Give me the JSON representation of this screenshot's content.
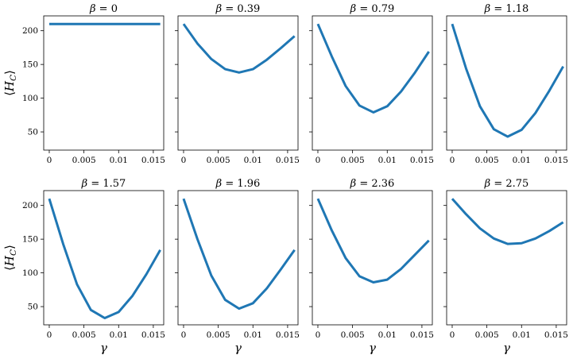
{
  "chart_data": {
    "type": "line",
    "rows": 2,
    "cols": 4,
    "xlabel": "γ",
    "ylabel_top": "⟨H",
    "ylabel_sub": "C",
    "ylabel_close": "⟩",
    "xlim": [
      -0.0008,
      0.0165
    ],
    "ylim": [
      23,
      222
    ],
    "xticks": [
      0,
      0.005,
      0.01,
      0.015
    ],
    "xtick_labels": [
      "0",
      "0.005",
      "0.01",
      "0.015"
    ],
    "yticks": [
      50,
      100,
      150,
      200
    ],
    "ytick_labels": [
      "50",
      "100",
      "150",
      "200"
    ],
    "title_symbol": "β",
    "title_eq": " = ",
    "panels": [
      {
        "beta": "0",
        "x": [
          0,
          0.016
        ],
        "y": [
          210,
          210
        ]
      },
      {
        "beta": "0.39",
        "x": [
          0,
          0.002,
          0.004,
          0.006,
          0.008,
          0.01,
          0.012,
          0.014,
          0.016
        ],
        "y": [
          210,
          181,
          158,
          143,
          138,
          143,
          157,
          174,
          192
        ]
      },
      {
        "beta": "0.79",
        "x": [
          0,
          0.002,
          0.004,
          0.006,
          0.008,
          0.01,
          0.012,
          0.014,
          0.016
        ],
        "y": [
          210,
          162,
          118,
          89,
          79,
          88,
          110,
          138,
          169
        ]
      },
      {
        "beta": "1.18",
        "x": [
          0,
          0.002,
          0.004,
          0.006,
          0.008,
          0.01,
          0.012,
          0.014,
          0.016
        ],
        "y": [
          210,
          144,
          88,
          54,
          43,
          53,
          78,
          111,
          147
        ]
      },
      {
        "beta": "1.57",
        "x": [
          0,
          0.002,
          0.004,
          0.006,
          0.008,
          0.01,
          0.012,
          0.014,
          0.016
        ],
        "y": [
          210,
          143,
          83,
          45,
          33,
          42,
          66,
          98,
          134
        ]
      },
      {
        "beta": "1.96",
        "x": [
          0,
          0.002,
          0.004,
          0.006,
          0.008,
          0.01,
          0.012,
          0.014,
          0.016
        ],
        "y": [
          210,
          150,
          96,
          60,
          47,
          55,
          77,
          105,
          134
        ]
      },
      {
        "beta": "2.36",
        "x": [
          0,
          0.002,
          0.004,
          0.006,
          0.008,
          0.01,
          0.012,
          0.014,
          0.016
        ],
        "y": [
          210,
          163,
          122,
          95,
          86,
          90,
          106,
          127,
          148
        ]
      },
      {
        "beta": "2.75",
        "x": [
          0,
          0.002,
          0.004,
          0.006,
          0.008,
          0.01,
          0.012,
          0.014,
          0.016
        ],
        "y": [
          210,
          187,
          166,
          151,
          143,
          144,
          151,
          162,
          175
        ]
      }
    ]
  }
}
